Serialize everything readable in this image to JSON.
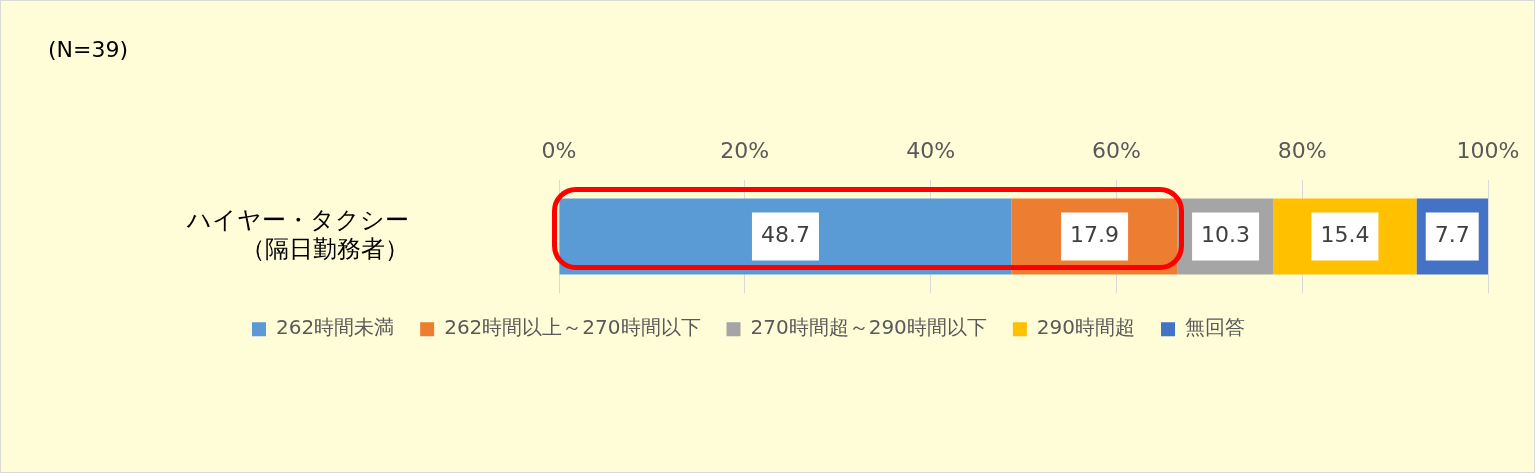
{
  "chart_data": {
    "type": "bar",
    "orientation": "horizontal",
    "stacked": true,
    "categories": [
      "ハイヤー・タクシー（隔日勤務者）"
    ],
    "series": [
      {
        "name": "262時間未満",
        "color": "#5b9bd5",
        "values": [
          48.7
        ]
      },
      {
        "name": "262時間以上～270時間以下",
        "color": "#ed7d31",
        "values": [
          17.9
        ]
      },
      {
        "name": "270時間超～290時間以下",
        "color": "#a5a5a5",
        "values": [
          10.3
        ]
      },
      {
        "name": "290時間超",
        "color": "#ffc000",
        "values": [
          15.4
        ]
      },
      {
        "name": "無回答",
        "color": "#4472c4",
        "values": [
          7.7
        ]
      }
    ],
    "xlim": [
      0,
      100
    ],
    "xticks": [
      {
        "value": 0,
        "label": "0%"
      },
      {
        "value": 20,
        "label": "20%"
      },
      {
        "value": 40,
        "label": "40%"
      },
      {
        "value": 60,
        "label": "60%"
      },
      {
        "value": 80,
        "label": "80%"
      },
      {
        "value": 100,
        "label": "100%"
      }
    ],
    "grid": "x",
    "legend": "bottom",
    "data_labels": true,
    "annotations": [
      "(N=39)"
    ]
  }
}
